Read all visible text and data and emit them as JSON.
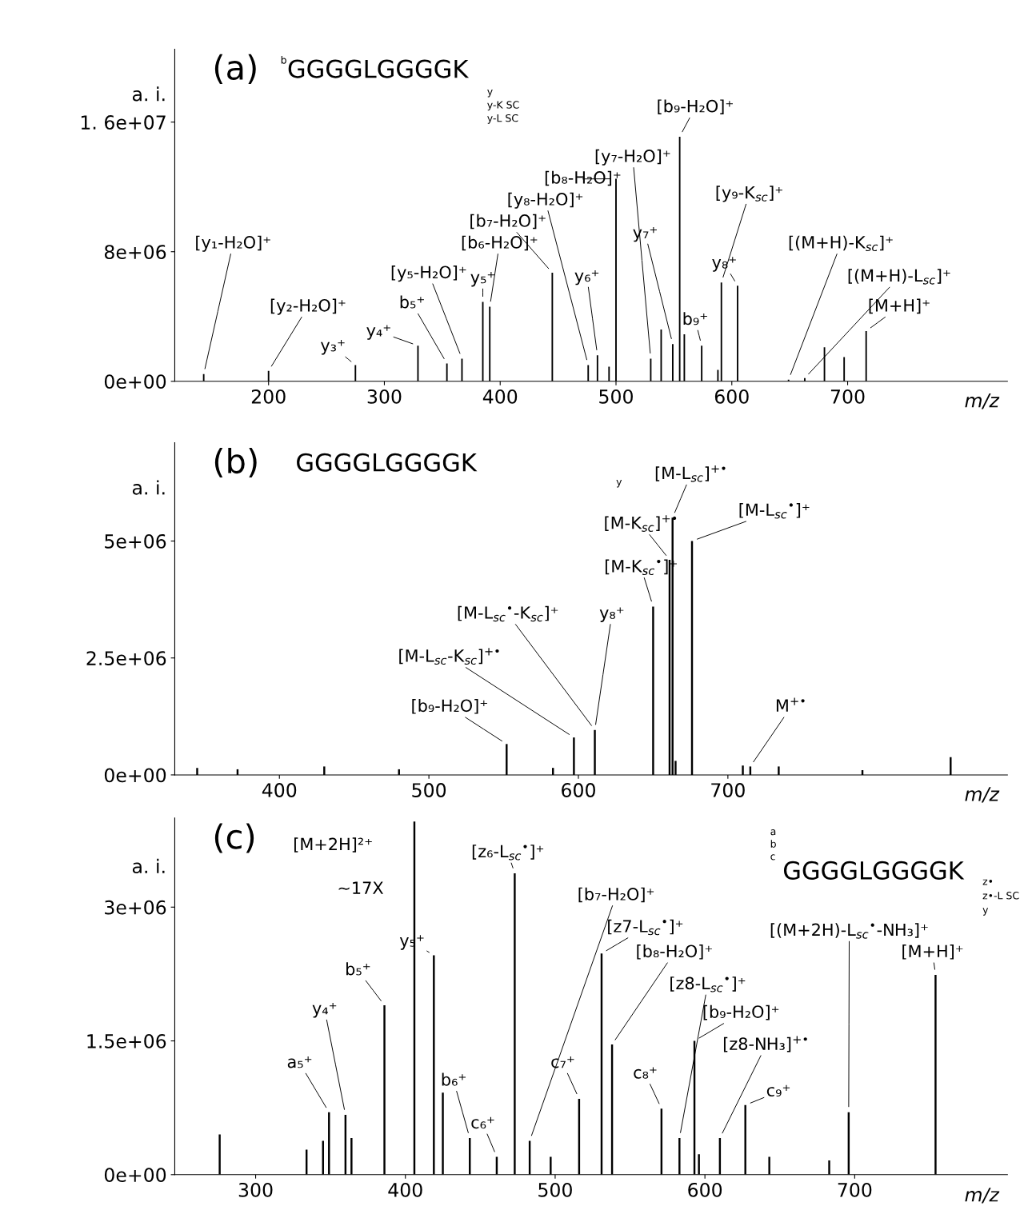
{
  "chart_data": [
    {
      "type": "bar",
      "title": "(a)",
      "subtitle": "GGGGLGGGGK",
      "xlabel": "m/z",
      "ylabel": "a. i.",
      "color": "#000000",
      "x": [
        144,
        200,
        275,
        329,
        354,
        367,
        385,
        391,
        445,
        476,
        484,
        494,
        500,
        530,
        539,
        549,
        555,
        559,
        574,
        588,
        591,
        605,
        649,
        663,
        680,
        697,
        716
      ],
      "values": [
        440000,
        640000,
        1000000,
        2200000,
        1100000,
        1400000,
        4900000,
        4600000,
        6700000,
        1000000,
        1600000,
        900000,
        12500000,
        1400000,
        3200000,
        2300000,
        15100000,
        2900000,
        2200000,
        700000,
        6100000,
        5900000,
        100000,
        200000,
        2100000,
        1500000,
        3100000
      ],
      "xlim": [
        119,
        838
      ],
      "ylim": [
        0,
        20500000
      ],
      "xticks": [
        200,
        300,
        400,
        500,
        600,
        700
      ],
      "yticks": [
        {
          "value": 0,
          "label": "0e+00"
        },
        {
          "value": 8000000,
          "label": "8e+06"
        },
        {
          "value": 16000000,
          "label": "1. 6e+07"
        }
      ],
      "grid": false,
      "legend": false,
      "annotations": [
        "b",
        "y",
        "y-K SC",
        "y-L SC",
        {
          "text": "[y₁-H₂O]⁺",
          "x": 144,
          "y": 440000
        },
        {
          "text": "[y₂-H₂O]⁺",
          "x": 200,
          "y": 640000
        },
        {
          "text": "y₃⁺",
          "x": 275,
          "y": 1000000
        },
        {
          "text": "y₄⁺",
          "x": 329,
          "y": 2200000
        },
        {
          "text": "b₅⁺",
          "x": 354,
          "y": 1100000
        },
        {
          "text": "[y₅-H₂O]⁺",
          "x": 367,
          "y": 1400000
        },
        {
          "text": "y₅⁺",
          "x": 385,
          "y": 4900000
        },
        {
          "text": "[b₆-H₂O]⁺",
          "x": 391,
          "y": 4600000
        },
        {
          "text": "[b₇-H₂O]⁺",
          "x": 445,
          "y": 6700000
        },
        {
          "text": "[y₈-H₂O]⁺",
          "x": 476,
          "y": 1000000
        },
        {
          "text": "[b₈-H₂O]⁺",
          "x": 500,
          "y": 12500000
        },
        {
          "text": "y₆⁺",
          "x": 484,
          "y": 1600000
        },
        {
          "text": "[y₇-H₂O]⁺",
          "x": 530,
          "y": 1400000
        },
        {
          "text": "y₇⁺",
          "x": 549,
          "y": 2300000
        },
        {
          "text": "[b₉-H₂O]⁺",
          "x": 555,
          "y": 15100000
        },
        {
          "text": "[y₉-K$_{sc}$]⁺",
          "x": 591,
          "y": 6100000
        },
        {
          "text": "b₉⁺",
          "x": 574,
          "y": 2200000
        },
        {
          "text": "y₈⁺",
          "x": 605,
          "y": 5900000
        },
        {
          "text": "[(M+H)-K$_{sc}$]⁺",
          "x": 649,
          "y": 100000
        },
        {
          "text": "[(M+H)-L$_{sc}$]⁺",
          "x": 663,
          "y": 200000
        },
        {
          "text": "[M+H]⁺",
          "x": 716,
          "y": 3100000
        }
      ]
    },
    {
      "type": "bar",
      "title": "(b)",
      "subtitle": "GGGGLGGGGK",
      "xlabel": "m/z",
      "ylabel": "a. i.",
      "color": "#000000",
      "x": [
        345,
        372,
        430,
        480,
        552,
        583,
        597,
        611,
        650,
        661,
        663,
        665,
        676,
        710,
        715,
        734,
        790,
        849
      ],
      "values": [
        150000,
        120000,
        180000,
        120000,
        660000,
        150000,
        800000,
        960000,
        3600000,
        4600000,
        5500000,
        300000,
        5000000,
        200000,
        180000,
        180000,
        100000,
        380000
      ],
      "xlim": [
        330,
        887
      ],
      "ylim": [
        0,
        7100000
      ],
      "xticks": [
        400,
        500,
        600,
        700
      ],
      "yticks": [
        {
          "value": 0,
          "label": "0e+00"
        },
        {
          "value": 2500000,
          "label": "2.5e+06"
        },
        {
          "value": 5000000,
          "label": "5e+06"
        }
      ],
      "grid": false,
      "legend": false,
      "annotations": [
        "y",
        {
          "text": "[b₉-H₂O]⁺",
          "x": 552,
          "y": 660000
        },
        {
          "text": "[M-L$_{sc}$-K$_{sc}$]$^{+•}$",
          "x": 597,
          "y": 800000
        },
        {
          "text": "[M-L$_{sc}$$^{•}$-K$_{sc}$]⁺",
          "x": 611,
          "y": 960000
        },
        {
          "text": "y₈⁺",
          "x": 611,
          "y": 960000
        },
        {
          "text": "[M-K$_{sc}$$^{•}$]⁺",
          "x": 650,
          "y": 3600000
        },
        {
          "text": "[M-K$_{sc}$]$^{+•}$",
          "x": 661,
          "y": 4600000
        },
        {
          "text": "[M-L$_{sc}$]$^{+•}$",
          "x": 663,
          "y": 5500000
        },
        {
          "text": "[M-L$_{sc}$$^{•}$]⁺",
          "x": 676,
          "y": 5000000
        },
        {
          "text": "M$^{+•}$",
          "x": 715,
          "y": 180000
        }
      ]
    },
    {
      "type": "bar",
      "title": "(c)",
      "subtitle": "GGGGLGGGGK",
      "xlabel": "m/z",
      "ylabel": "a. i.",
      "color": "#000000",
      "x": [
        276,
        334,
        345,
        349,
        360,
        364,
        386,
        406,
        419,
        425,
        443,
        461,
        473,
        483,
        497,
        516,
        531,
        538,
        571,
        583,
        593,
        596,
        610,
        627,
        643,
        683,
        696,
        754
      ],
      "values": [
        450000,
        280000,
        380000,
        700000,
        670000,
        410000,
        1900000,
        3960000,
        2460000,
        920000,
        410000,
        200000,
        3380000,
        380000,
        200000,
        850000,
        2480000,
        1460000,
        740000,
        410000,
        1500000,
        230000,
        410000,
        780000,
        200000,
        160000,
        700000,
        2240000
      ],
      "xlim": [
        246,
        802
      ],
      "ylim": [
        0,
        4000000
      ],
      "xticks": [
        300,
        400,
        500,
        600,
        700
      ],
      "yticks": [
        {
          "value": 0,
          "label": "0e+00"
        },
        {
          "value": 1500000,
          "label": "1.5e+06"
        },
        {
          "value": 3000000,
          "label": "3e+06"
        }
      ],
      "grid": false,
      "legend": false,
      "annotations": [
        "a",
        "b",
        "c",
        "z•",
        "z•-L SC",
        "y",
        "~17X",
        {
          "text": "[M+2H]²⁺",
          "x": 406,
          "y": 3960000
        },
        {
          "text": "a₅⁺",
          "x": 349,
          "y": 700000
        },
        {
          "text": "y₄⁺",
          "x": 360,
          "y": 670000
        },
        {
          "text": "b₅⁺",
          "x": 386,
          "y": 1900000
        },
        {
          "text": "y₅⁺",
          "x": 419,
          "y": 2460000
        },
        {
          "text": "b₆⁺",
          "x": 443,
          "y": 410000
        },
        {
          "text": "c₆⁺",
          "x": 461,
          "y": 200000
        },
        {
          "text": "[z₆-L$_{sc}$$^{•}$]⁺",
          "x": 473,
          "y": 3380000
        },
        {
          "text": "[b₇-H₂O]⁺",
          "x": 483,
          "y": 380000
        },
        {
          "text": "c₇⁺",
          "x": 516,
          "y": 850000
        },
        {
          "text": "[z7-L$_{sc}$$^{•}$]⁺",
          "x": 531,
          "y": 2480000
        },
        {
          "text": "[b₈-H₂O]⁺",
          "x": 538,
          "y": 1460000
        },
        {
          "text": "[z8-L$_{sc}$$^{•}$]⁺",
          "x": 583,
          "y": 410000
        },
        {
          "text": "c₈⁺",
          "x": 571,
          "y": 740000
        },
        {
          "text": "[b₉-H₂O]⁺",
          "x": 593,
          "y": 1500000
        },
        {
          "text": "[z8-NH₃]$^{+•}$",
          "x": 610,
          "y": 410000
        },
        {
          "text": "c₉⁺",
          "x": 627,
          "y": 780000
        },
        {
          "text": "[(M+2H)-L$_{sc}$$^{•}$-NH₃]⁺",
          "x": 696,
          "y": 700000
        },
        {
          "text": "[M+H]⁺",
          "x": 754,
          "y": 2240000
        }
      ]
    }
  ]
}
